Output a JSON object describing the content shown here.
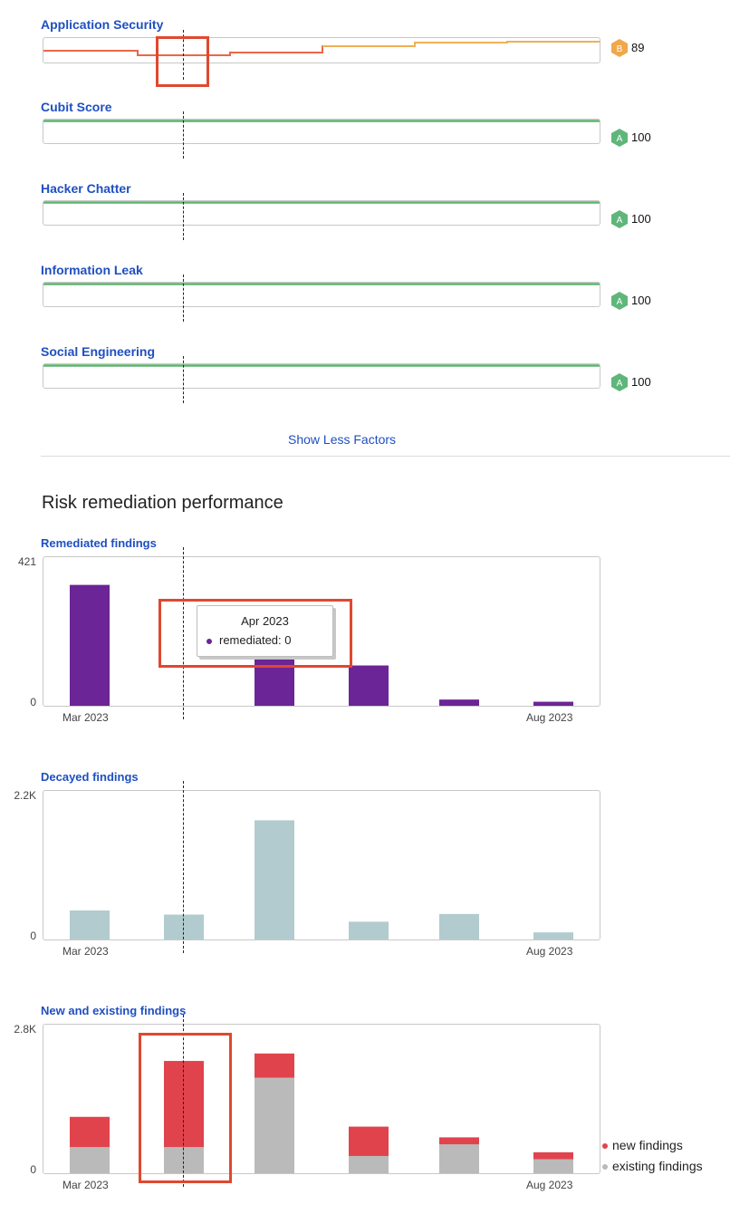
{
  "factors": [
    {
      "title": "Application Security",
      "grade": "B",
      "score": "89",
      "grade_color": "#f0a84a"
    },
    {
      "title": "Cubit Score",
      "grade": "A",
      "score": "100",
      "grade_color": "#5fb67a"
    },
    {
      "title": "Hacker Chatter",
      "grade": "A",
      "score": "100",
      "grade_color": "#5fb67a"
    },
    {
      "title": "Information Leak",
      "grade": "A",
      "score": "100",
      "grade_color": "#5fb67a"
    },
    {
      "title": "Social Engineering",
      "grade": "A",
      "score": "100",
      "grade_color": "#5fb67a"
    }
  ],
  "show_less_label": "Show Less Factors",
  "section_title": "Risk remediation performance",
  "tooltip": {
    "title": "Apr 2023",
    "label": "remediated: 0",
    "color": "#6b2596"
  },
  "chart_data": [
    {
      "type": "bar",
      "title": "Remediated findings",
      "categories": [
        "Mar 2023",
        "Apr 2023",
        "May 2023",
        "Jun 2023",
        "Jul 2023",
        "Aug 2023"
      ],
      "x_tick_labels": [
        "Mar 2023",
        "Aug 2023"
      ],
      "y_tick_labels": [
        "421",
        "0"
      ],
      "ylim": [
        0,
        421
      ],
      "series": [
        {
          "values": [
            390,
            0,
            190,
            130,
            20,
            13
          ],
          "color": "#6b2596"
        }
      ]
    },
    {
      "type": "bar",
      "title": "Decayed findings",
      "categories": [
        "Mar 2023",
        "Apr 2023",
        "May 2023",
        "Jun 2023",
        "Jul 2023",
        "Aug 2023"
      ],
      "x_tick_labels": [
        "Mar 2023",
        "Aug 2023"
      ],
      "y_tick_labels": [
        "2.2K",
        "0"
      ],
      "ylim": [
        0,
        2200
      ],
      "series": [
        {
          "values": [
            490,
            420,
            2010,
            300,
            430,
            120
          ],
          "color": "#b2cbcf"
        }
      ]
    },
    {
      "type": "bar",
      "stacked": true,
      "title": "New and existing findings",
      "categories": [
        "Mar 2023",
        "Apr 2023",
        "May 2023",
        "Jun 2023",
        "Jul 2023",
        "Aug 2023"
      ],
      "x_tick_labels": [
        "Mar 2023",
        "Aug 2023"
      ],
      "y_tick_labels": [
        "2.8K",
        "0"
      ],
      "ylim": [
        0,
        2800
      ],
      "legend_position": "right",
      "series": [
        {
          "name": "existing findings",
          "values": [
            560,
            560,
            2050,
            370,
            620,
            300
          ],
          "color": "#bababa"
        },
        {
          "name": "new findings",
          "values": [
            650,
            1850,
            520,
            630,
            150,
            150
          ],
          "color": "#e1434d"
        }
      ]
    }
  ]
}
